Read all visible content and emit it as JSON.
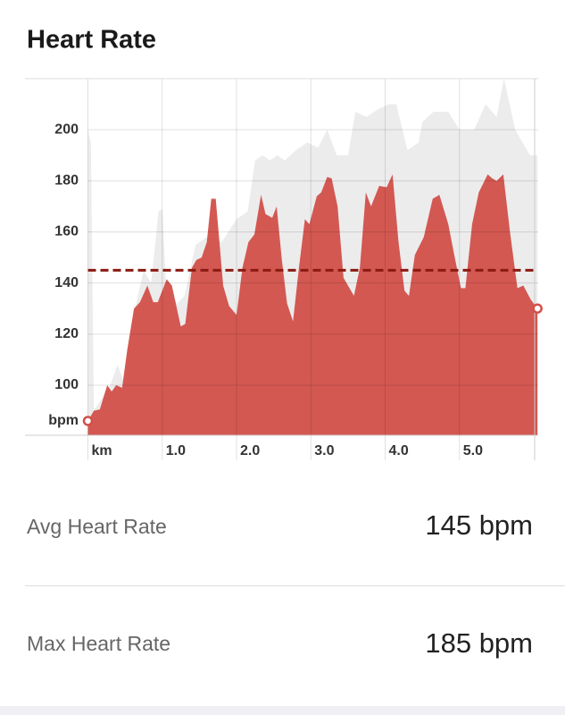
{
  "title": "Heart Rate",
  "chart_data": {
    "type": "area",
    "y_label": "bpm",
    "xlim": [
      0,
      6.06
    ],
    "ylim": [
      80.4,
      220
    ],
    "xticks": [
      {
        "value": 0,
        "label": "km"
      },
      {
        "value": 1,
        "label": "1.0"
      },
      {
        "value": 2,
        "label": "2.0"
      },
      {
        "value": 3,
        "label": "3.0"
      },
      {
        "value": 4,
        "label": "4.0"
      },
      {
        "value": 5,
        "label": "5.0"
      }
    ],
    "yticks": [
      100,
      120,
      140,
      160,
      180,
      200
    ],
    "grid": true,
    "avg_line": 145,
    "avg_color": "#8b1a12",
    "series": [
      {
        "color": "#ececec",
        "x": [
          0,
          0.04,
          0.08,
          0.3,
          0.4,
          0.5,
          0.62,
          0.75,
          0.85,
          0.95,
          1.0,
          1.05,
          1.2,
          1.3,
          1.45,
          1.6,
          1.8,
          2.0,
          2.15,
          2.25,
          2.35,
          2.45,
          2.55,
          2.65,
          2.8,
          2.95,
          3.1,
          3.22,
          3.35,
          3.5,
          3.6,
          3.75,
          3.9,
          4.05,
          4.15,
          4.3,
          4.45,
          4.5,
          4.65,
          4.85,
          5.0,
          5.2,
          5.35,
          5.5,
          5.6,
          5.75,
          5.85,
          5.95,
          6.05
        ],
        "values": [
          200,
          195,
          90,
          100,
          108,
          100,
          128,
          145,
          140,
          168,
          169,
          140,
          132,
          135,
          155,
          158,
          156,
          165,
          168,
          188,
          190,
          188,
          190,
          188,
          192,
          195,
          193,
          200,
          190,
          190,
          207,
          205,
          208,
          210,
          210,
          192,
          195,
          203,
          207,
          207,
          200,
          200,
          210,
          205,
          220,
          200,
          195,
          190,
          190
        ]
      },
      {
        "color": "#d2504a",
        "x": [
          0,
          0.08,
          0.16,
          0.26,
          0.32,
          0.38,
          0.46,
          0.53,
          0.62,
          0.7,
          0.8,
          0.88,
          0.94,
          1.06,
          1.13,
          1.25,
          1.31,
          1.4,
          1.46,
          1.53,
          1.6,
          1.66,
          1.72,
          1.82,
          1.9,
          2.0,
          2.08,
          2.16,
          2.24,
          2.33,
          2.39,
          2.48,
          2.54,
          2.61,
          2.68,
          2.76,
          2.84,
          2.92,
          2.98,
          3.08,
          3.14,
          3.22,
          3.28,
          3.36,
          3.44,
          3.58,
          3.66,
          3.74,
          3.81,
          3.92,
          4.02,
          4.1,
          4.18,
          4.26,
          4.32,
          4.4,
          4.52,
          4.64,
          4.73,
          4.85,
          4.93,
          5.02,
          5.08,
          5.17,
          5.26,
          5.38,
          5.44,
          5.5,
          5.59,
          5.68,
          5.78,
          5.86,
          5.96,
          6.05
        ],
        "values": [
          86,
          90,
          90.5,
          100,
          97.5,
          100,
          99,
          114,
          130,
          132.5,
          139,
          132.5,
          132.5,
          141.5,
          139,
          123,
          124,
          146,
          149,
          150,
          156,
          173,
          173,
          139,
          131,
          127.5,
          146,
          156,
          159,
          174.5,
          167,
          165.5,
          170,
          149,
          132,
          125,
          146,
          165,
          163,
          174,
          175.5,
          181.5,
          181,
          170,
          142,
          135,
          146,
          175.5,
          170,
          178,
          177.5,
          182.5,
          156,
          137,
          135,
          151,
          158,
          173,
          174.5,
          163,
          151,
          138,
          138,
          163,
          175.5,
          182.5,
          181,
          180,
          182.5,
          160,
          138,
          139,
          133.5,
          130
        ]
      }
    ]
  },
  "stats": [
    {
      "label": "Avg Heart Rate",
      "value": "145 bpm"
    },
    {
      "label": "Max Heart Rate",
      "value": "185 bpm"
    }
  ]
}
